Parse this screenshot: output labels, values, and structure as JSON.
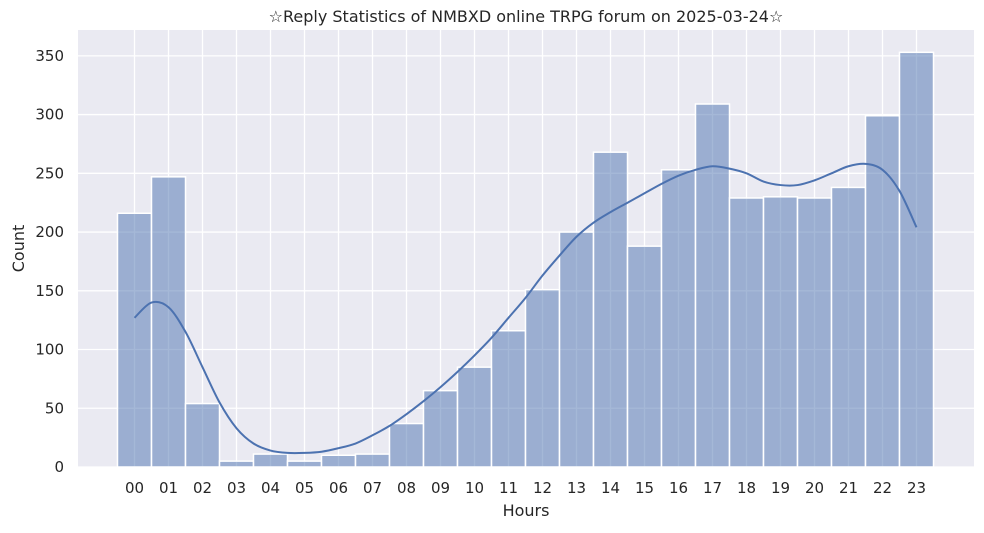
{
  "chart_data": {
    "type": "bar",
    "title": "☆Reply Statistics of NMBXD online TRPG forum on 2025-03-24☆",
    "xlabel": "Hours",
    "ylabel": "Count",
    "categories": [
      "00",
      "01",
      "02",
      "03",
      "04",
      "05",
      "06",
      "07",
      "08",
      "09",
      "10",
      "11",
      "12",
      "13",
      "14",
      "15",
      "16",
      "17",
      "18",
      "19",
      "20",
      "21",
      "22",
      "23"
    ],
    "values": [
      216,
      247,
      54,
      5,
      11,
      5,
      10,
      11,
      37,
      65,
      85,
      116,
      151,
      200,
      268,
      188,
      253,
      309,
      229,
      230,
      229,
      238,
      299,
      353
    ],
    "kde": {
      "x": [
        0,
        0.5,
        1,
        1.5,
        2,
        2.5,
        3,
        3.5,
        4,
        4.5,
        5,
        5.5,
        6,
        6.5,
        7,
        7.5,
        8,
        8.5,
        9,
        9.5,
        10,
        10.5,
        11,
        11.5,
        12,
        12.5,
        13,
        13.5,
        14,
        14.5,
        15,
        15.5,
        16,
        16.5,
        17,
        17.5,
        18,
        18.5,
        19,
        19.5,
        20,
        20.5,
        21,
        21.5,
        22,
        22.5,
        23
      ],
      "y": [
        127,
        140,
        136,
        115,
        85,
        55,
        33,
        20,
        14,
        12,
        12,
        13,
        16,
        20,
        27,
        35,
        45,
        56,
        68,
        81,
        95,
        110,
        127,
        144,
        163,
        180,
        196,
        208,
        217,
        225,
        233,
        241,
        248,
        253,
        256,
        254,
        250,
        243,
        240,
        240,
        244,
        250,
        256,
        258,
        253,
        235,
        204
      ]
    },
    "yticks": [
      0,
      50,
      100,
      150,
      200,
      250,
      300,
      350
    ],
    "ylim": [
      0,
      372
    ],
    "grid": true,
    "colors": {
      "background": "#eaeaf2",
      "grid": "#ffffff",
      "bar_fill": "#4c72b0",
      "bar_opacity": 0.5,
      "line": "#4c72b0"
    }
  }
}
